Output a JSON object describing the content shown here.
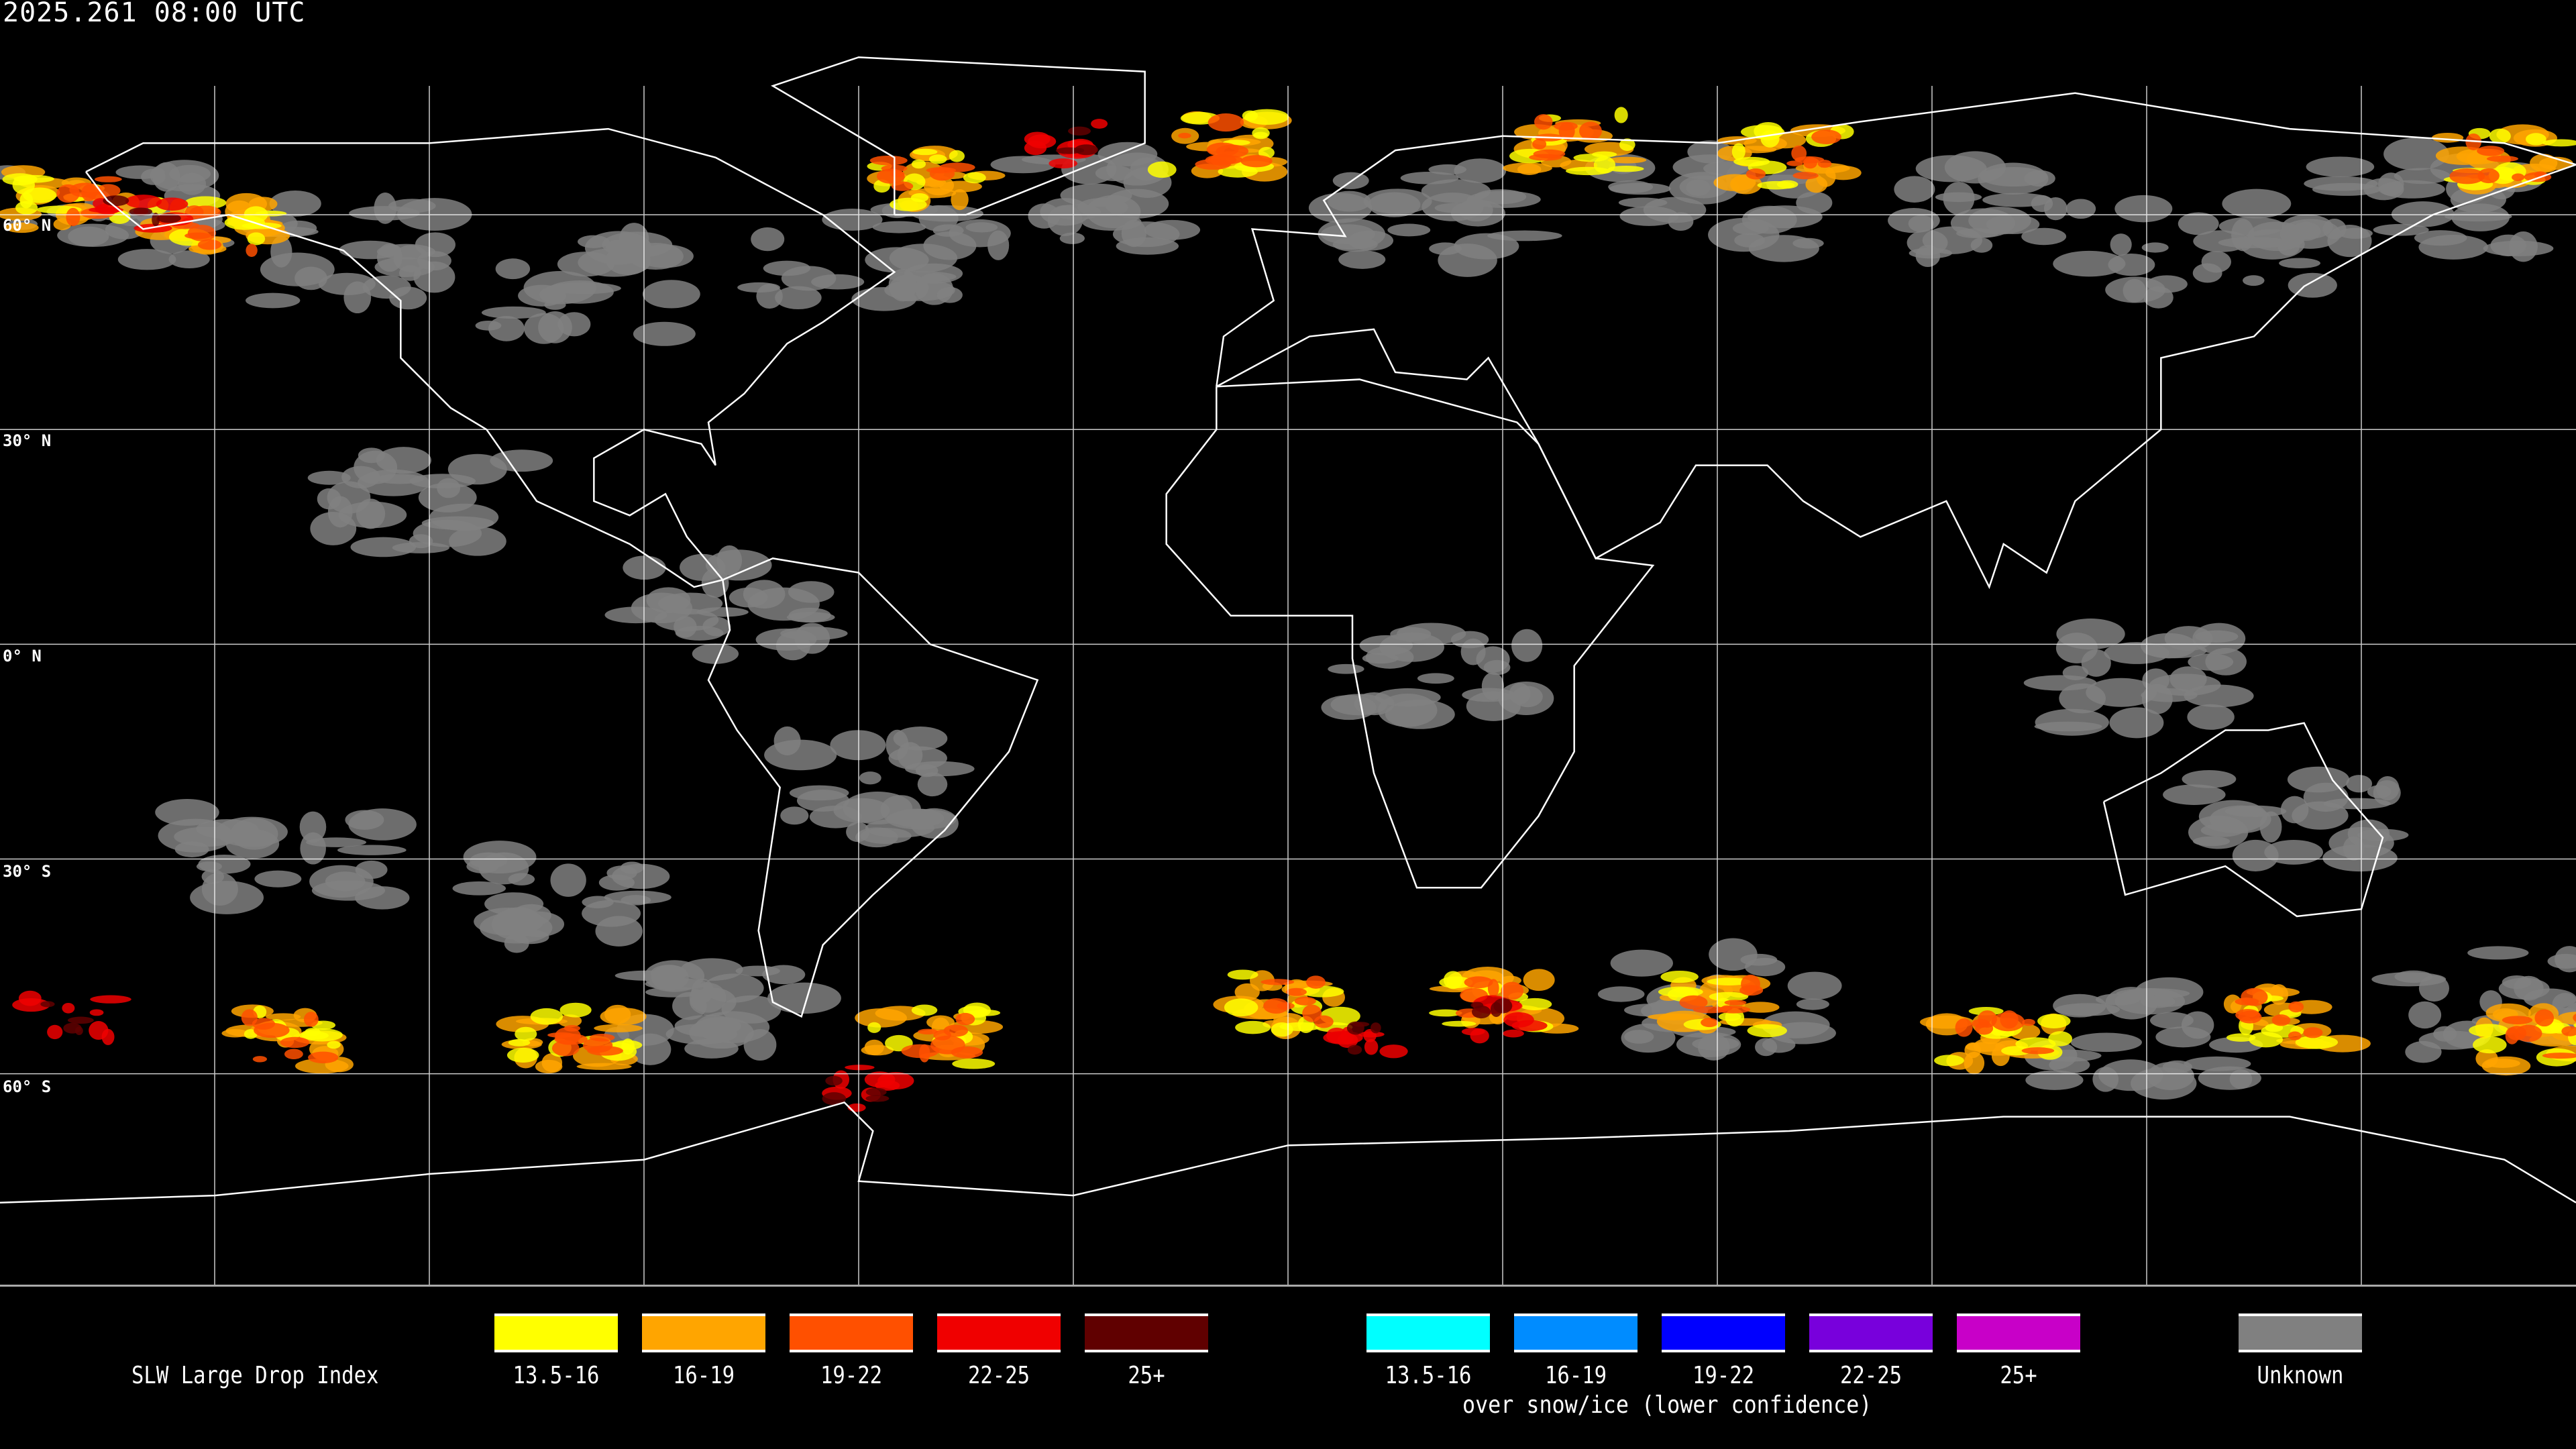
{
  "header": {
    "timestamp": "2025.261 08:00 UTC"
  },
  "map": {
    "projection": "equirectangular",
    "lat_labels": [
      "60° N",
      "30° N",
      "0° N",
      "30° S",
      "60° S"
    ],
    "gridline_color": "#ffffff",
    "coastline_color": "#ffffff",
    "background": "#000000"
  },
  "legend": {
    "title": "SLW Large Drop Index",
    "main": [
      {
        "label": "13.5-16",
        "color": "#ffff00"
      },
      {
        "label": "16-19",
        "color": "#ffa500"
      },
      {
        "label": "19-22",
        "color": "#ff5000"
      },
      {
        "label": "22-25",
        "color": "#f00000"
      },
      {
        "label": "25+",
        "color": "#600000"
      }
    ],
    "snow_ice": [
      {
        "label": "13.5-16",
        "color": "#00ffff"
      },
      {
        "label": "16-19",
        "color": "#008cff"
      },
      {
        "label": "19-22",
        "color": "#0000ff"
      },
      {
        "label": "22-25",
        "color": "#7800dc"
      },
      {
        "label": "25+",
        "color": "#c800c8"
      }
    ],
    "snow_ice_caption": "over snow/ice (lower confidence)",
    "unknown": {
      "label": "Unknown",
      "color": "#808080"
    }
  }
}
